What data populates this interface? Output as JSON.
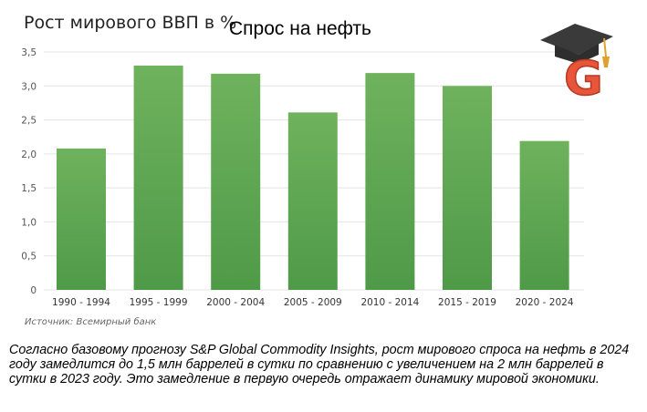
{
  "header": {
    "overlay_title": "Спрос на нефть",
    "logo_letter": "G"
  },
  "chart_data": {
    "type": "bar",
    "title": "Рост мирового ВВП в %",
    "xlabel": "",
    "ylabel": "",
    "categories": [
      "1990 - 1994",
      "1995 - 1999",
      "2000 - 2004",
      "2005 - 2009",
      "2010 - 2014",
      "2015 - 2019",
      "2020 - 2024"
    ],
    "values": [
      2.08,
      3.3,
      3.18,
      2.61,
      3.19,
      3.0,
      2.19
    ],
    "ylim": [
      0,
      3.5
    ],
    "yticks": [
      "0",
      "0,5",
      "1,0",
      "1,5",
      "2,0",
      "2,5",
      "3,0",
      "3,5"
    ],
    "ytick_values": [
      0,
      0.5,
      1.0,
      1.5,
      2.0,
      2.5,
      3.0,
      3.5
    ],
    "grid": true,
    "bar_color_top": "#6fb25d",
    "bar_color_bottom": "#4f9a48",
    "source": "Источник: Всемирный банк"
  },
  "caption": "Согласно базовому прогнозу S&P Global Commodity Insights, рост мирового спроса на нефть в 2024 году замедлится до 1,5 млн баррелей в сутки по сравнению с увеличением на 2 млн баррелей в сутки в 2023 году. Это замедление в первую очередь отражает динамику мировой экономики.",
  "colors": {
    "grid": "#e3e3e3",
    "tick_text": "#555555",
    "logo_orange": "#e8553a",
    "logo_cap": "#3a3a3a"
  }
}
